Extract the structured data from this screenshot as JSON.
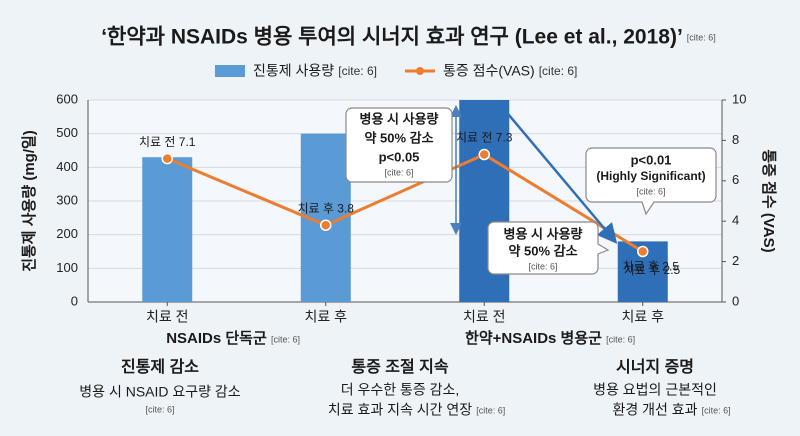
{
  "chart_data": {
    "type": "bar_line",
    "title": "‘한약과 NSAIDs 병용 투여의 시너지 효과 연구 (Lee et al., 2018)’",
    "title_cite": "[cite: 6]",
    "categories": [
      "치료 전",
      "치료 후",
      "치료 전",
      "치료 후"
    ],
    "groups": [
      {
        "label": "NSAIDs 단독군",
        "cite": "[cite: 6]"
      },
      {
        "label": "한약+NSAIDs 병용군",
        "cite": "[cite: 6]"
      }
    ],
    "ylabel": "진통제 사용량 (mg/일)",
    "y2label": "통증 점수 (VAS)",
    "ylim": [
      0,
      600
    ],
    "yticks": [
      0,
      100,
      200,
      300,
      400,
      500,
      600
    ],
    "y2lim": [
      0,
      10
    ],
    "y2ticks": [
      0,
      2,
      4,
      6,
      8,
      10
    ],
    "grid": true,
    "series": [
      {
        "name": "진통제 사용량",
        "cite": "[cite: 6]",
        "type": "bar",
        "color": "#5b9bd5",
        "colors": [
          "#5b9bd5",
          "#5b9bd5",
          "#2f6fb8",
          "#2f6fb8"
        ],
        "values": [
          430,
          500,
          600,
          180
        ]
      },
      {
        "name": "통증 점수(VAS)",
        "cite": "[cite: 6]",
        "type": "line",
        "axis": "y2",
        "color": "#ed7d31",
        "values": [
          7.1,
          3.8,
          7.3,
          2.5
        ],
        "value_labels": [
          "치료 전 7.1",
          "치료 후 3.8",
          "치료 전 7.3",
          "치료 후 2.5"
        ]
      }
    ],
    "annotations": [
      {
        "lines": [
          "병용 시 사용량",
          "약 50% 감소",
          "p<0.05"
        ],
        "cite": "[cite: 6]"
      },
      {
        "lines": [
          "p<0.01",
          "(Highly Significant)"
        ],
        "cite": "[cite: 6]"
      },
      {
        "lines": [
          "병용 시 사용량",
          "약 50% 감소"
        ],
        "cite": "[cite: 6]"
      },
      {
        "lines": [
          "치료 후 2.5"
        ]
      }
    ]
  },
  "summary": [
    {
      "title": "진통제 감소",
      "lines": [
        "병용 시 NSAID 요구량 감소"
      ],
      "cite": "[cite: 6]"
    },
    {
      "title": "통증 조절 지속",
      "lines": [
        "더 우수한 통증 감소,",
        "치료 효과 지속 시간 연장"
      ],
      "cite": "[cite: 6]"
    },
    {
      "title": "시너지 증명",
      "lines": [
        "병용 요법의 근본적인",
        "환경 개선 효과"
      ],
      "cite": "[cite: 6]"
    }
  ]
}
